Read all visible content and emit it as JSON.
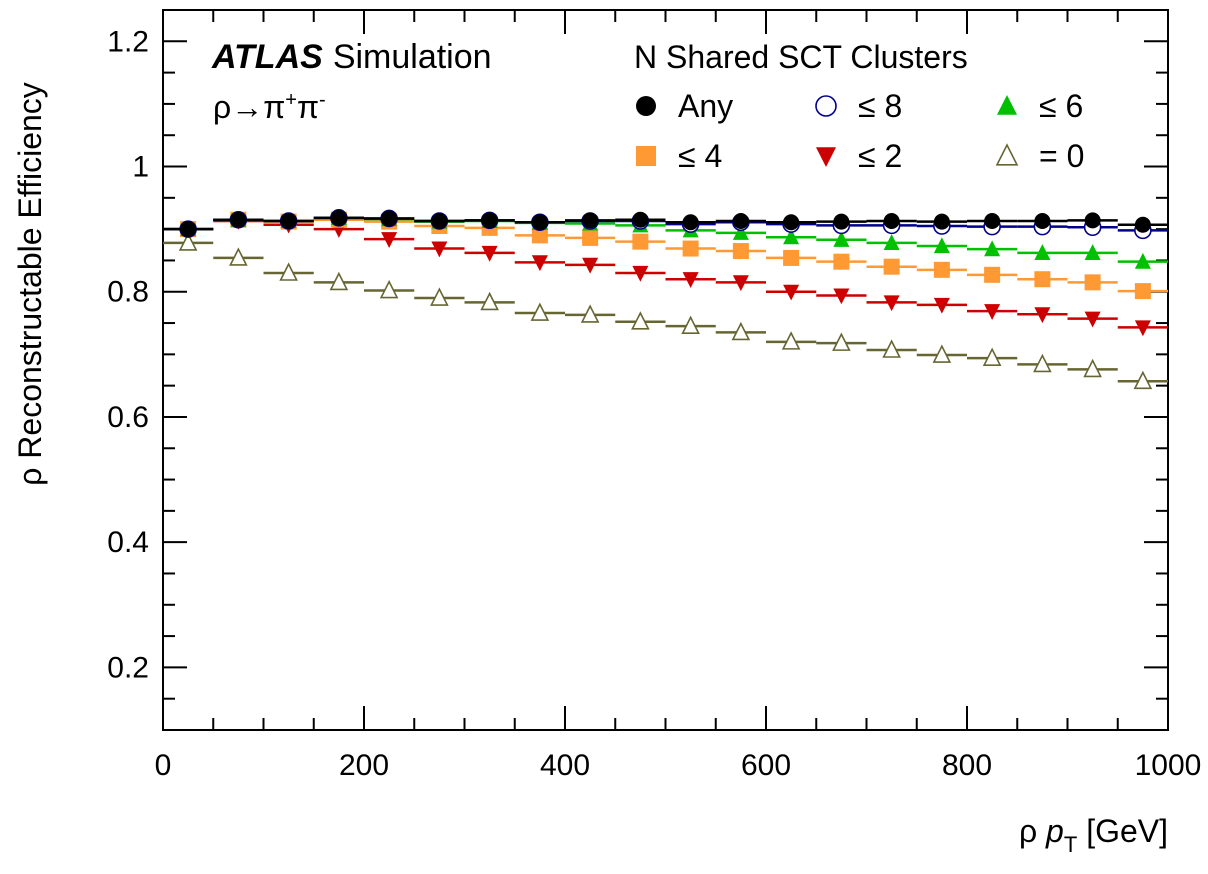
{
  "chart_data": {
    "type": "scatter",
    "title": "",
    "experiment": "ATLAS",
    "experiment_tag": "Simulation",
    "process": {
      "base": "ρ→π",
      "sup1": "+",
      "mid": "π",
      "sup2": "-"
    },
    "xlabel": {
      "prefix": "ρ ",
      "var": "p",
      "sub": "T",
      "unit": " [GeV]"
    },
    "ylabel": "ρ Reconstructable Efficiency",
    "xlim": [
      0,
      1000
    ],
    "ylim": [
      0.1,
      1.25
    ],
    "x_tick_labels": [
      "0",
      "200",
      "400",
      "600",
      "800",
      "1000"
    ],
    "y_tick_labels": [
      "0.2",
      "0.4",
      "0.6",
      "0.8",
      "1",
      "1.2"
    ],
    "legend_title": "N Shared SCT Clusters",
    "legend_placement": "top-right",
    "grid": false,
    "bin_width": 50,
    "x": [
      25,
      75,
      125,
      175,
      225,
      275,
      325,
      375,
      425,
      475,
      525,
      575,
      625,
      675,
      725,
      775,
      825,
      875,
      925,
      975
    ],
    "series": [
      {
        "name": "Any",
        "marker": "circle-filled",
        "color": "#000000",
        "values": [
          0.9,
          0.915,
          0.913,
          0.918,
          0.917,
          0.913,
          0.914,
          0.911,
          0.914,
          0.915,
          0.911,
          0.913,
          0.911,
          0.912,
          0.913,
          0.912,
          0.913,
          0.913,
          0.914,
          0.907
        ]
      },
      {
        "name": "≤ 8",
        "marker": "circle-open",
        "color": "#00008c",
        "values": [
          0.9,
          0.915,
          0.913,
          0.918,
          0.917,
          0.913,
          0.914,
          0.911,
          0.913,
          0.913,
          0.908,
          0.911,
          0.908,
          0.906,
          0.906,
          0.905,
          0.904,
          0.904,
          0.903,
          0.898
        ]
      },
      {
        "name": "≤ 6",
        "marker": "triangle-up-filled",
        "color": "#00c000",
        "values": [
          0.9,
          0.915,
          0.913,
          0.918,
          0.916,
          0.912,
          0.913,
          0.91,
          0.909,
          0.906,
          0.898,
          0.894,
          0.887,
          0.883,
          0.878,
          0.873,
          0.868,
          0.862,
          0.862,
          0.848
        ]
      },
      {
        "name": "≤ 4",
        "marker": "square-filled",
        "color": "#ff9933",
        "values": [
          0.9,
          0.915,
          0.912,
          0.915,
          0.912,
          0.905,
          0.902,
          0.89,
          0.886,
          0.88,
          0.869,
          0.865,
          0.854,
          0.848,
          0.84,
          0.835,
          0.827,
          0.82,
          0.815,
          0.801
        ]
      },
      {
        "name": "≤ 2",
        "marker": "triangle-down-filled",
        "color": "#cc0000",
        "values": [
          0.9,
          0.913,
          0.907,
          0.9,
          0.884,
          0.869,
          0.862,
          0.847,
          0.843,
          0.83,
          0.82,
          0.815,
          0.8,
          0.794,
          0.783,
          0.779,
          0.769,
          0.764,
          0.757,
          0.743
        ]
      },
      {
        "name": "= 0",
        "marker": "triangle-up-open",
        "color": "#666633",
        "values": [
          0.878,
          0.854,
          0.83,
          0.815,
          0.802,
          0.79,
          0.783,
          0.766,
          0.763,
          0.752,
          0.745,
          0.735,
          0.72,
          0.718,
          0.707,
          0.699,
          0.694,
          0.684,
          0.676,
          0.657
        ]
      }
    ]
  }
}
